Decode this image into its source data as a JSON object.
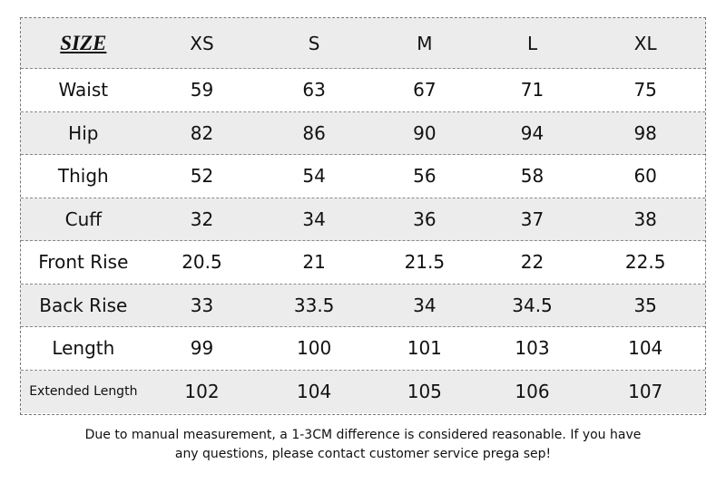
{
  "header": {
    "title": "SIZE",
    "columns": [
      "XS",
      "S",
      "M",
      "L",
      "XL"
    ]
  },
  "table": {
    "rows": [
      {
        "label": "Waist",
        "values": [
          59,
          63,
          67,
          71,
          75
        ]
      },
      {
        "label": "Hip",
        "values": [
          82,
          86,
          90,
          94,
          98
        ]
      },
      {
        "label": "Thigh",
        "values": [
          52,
          54,
          56,
          58,
          60
        ]
      },
      {
        "label": "Cuff",
        "values": [
          32,
          34,
          36,
          37,
          38
        ]
      },
      {
        "label": "Front Rise",
        "values": [
          20.5,
          21,
          21.5,
          22,
          22.5
        ]
      },
      {
        "label": "Back Rise",
        "values": [
          33,
          33.5,
          34,
          34.5,
          35
        ]
      },
      {
        "label": "Length",
        "values": [
          99,
          100,
          101,
          103,
          104
        ]
      },
      {
        "label": "Extended Length",
        "values": [
          102,
          104,
          105,
          106,
          107
        ]
      }
    ]
  },
  "note": {
    "lines": [
      "Due to manual measurement, a 1-3CM difference is considered reasonable. If you have",
      "any questions, please contact customer service prega sep!"
    ]
  }
}
